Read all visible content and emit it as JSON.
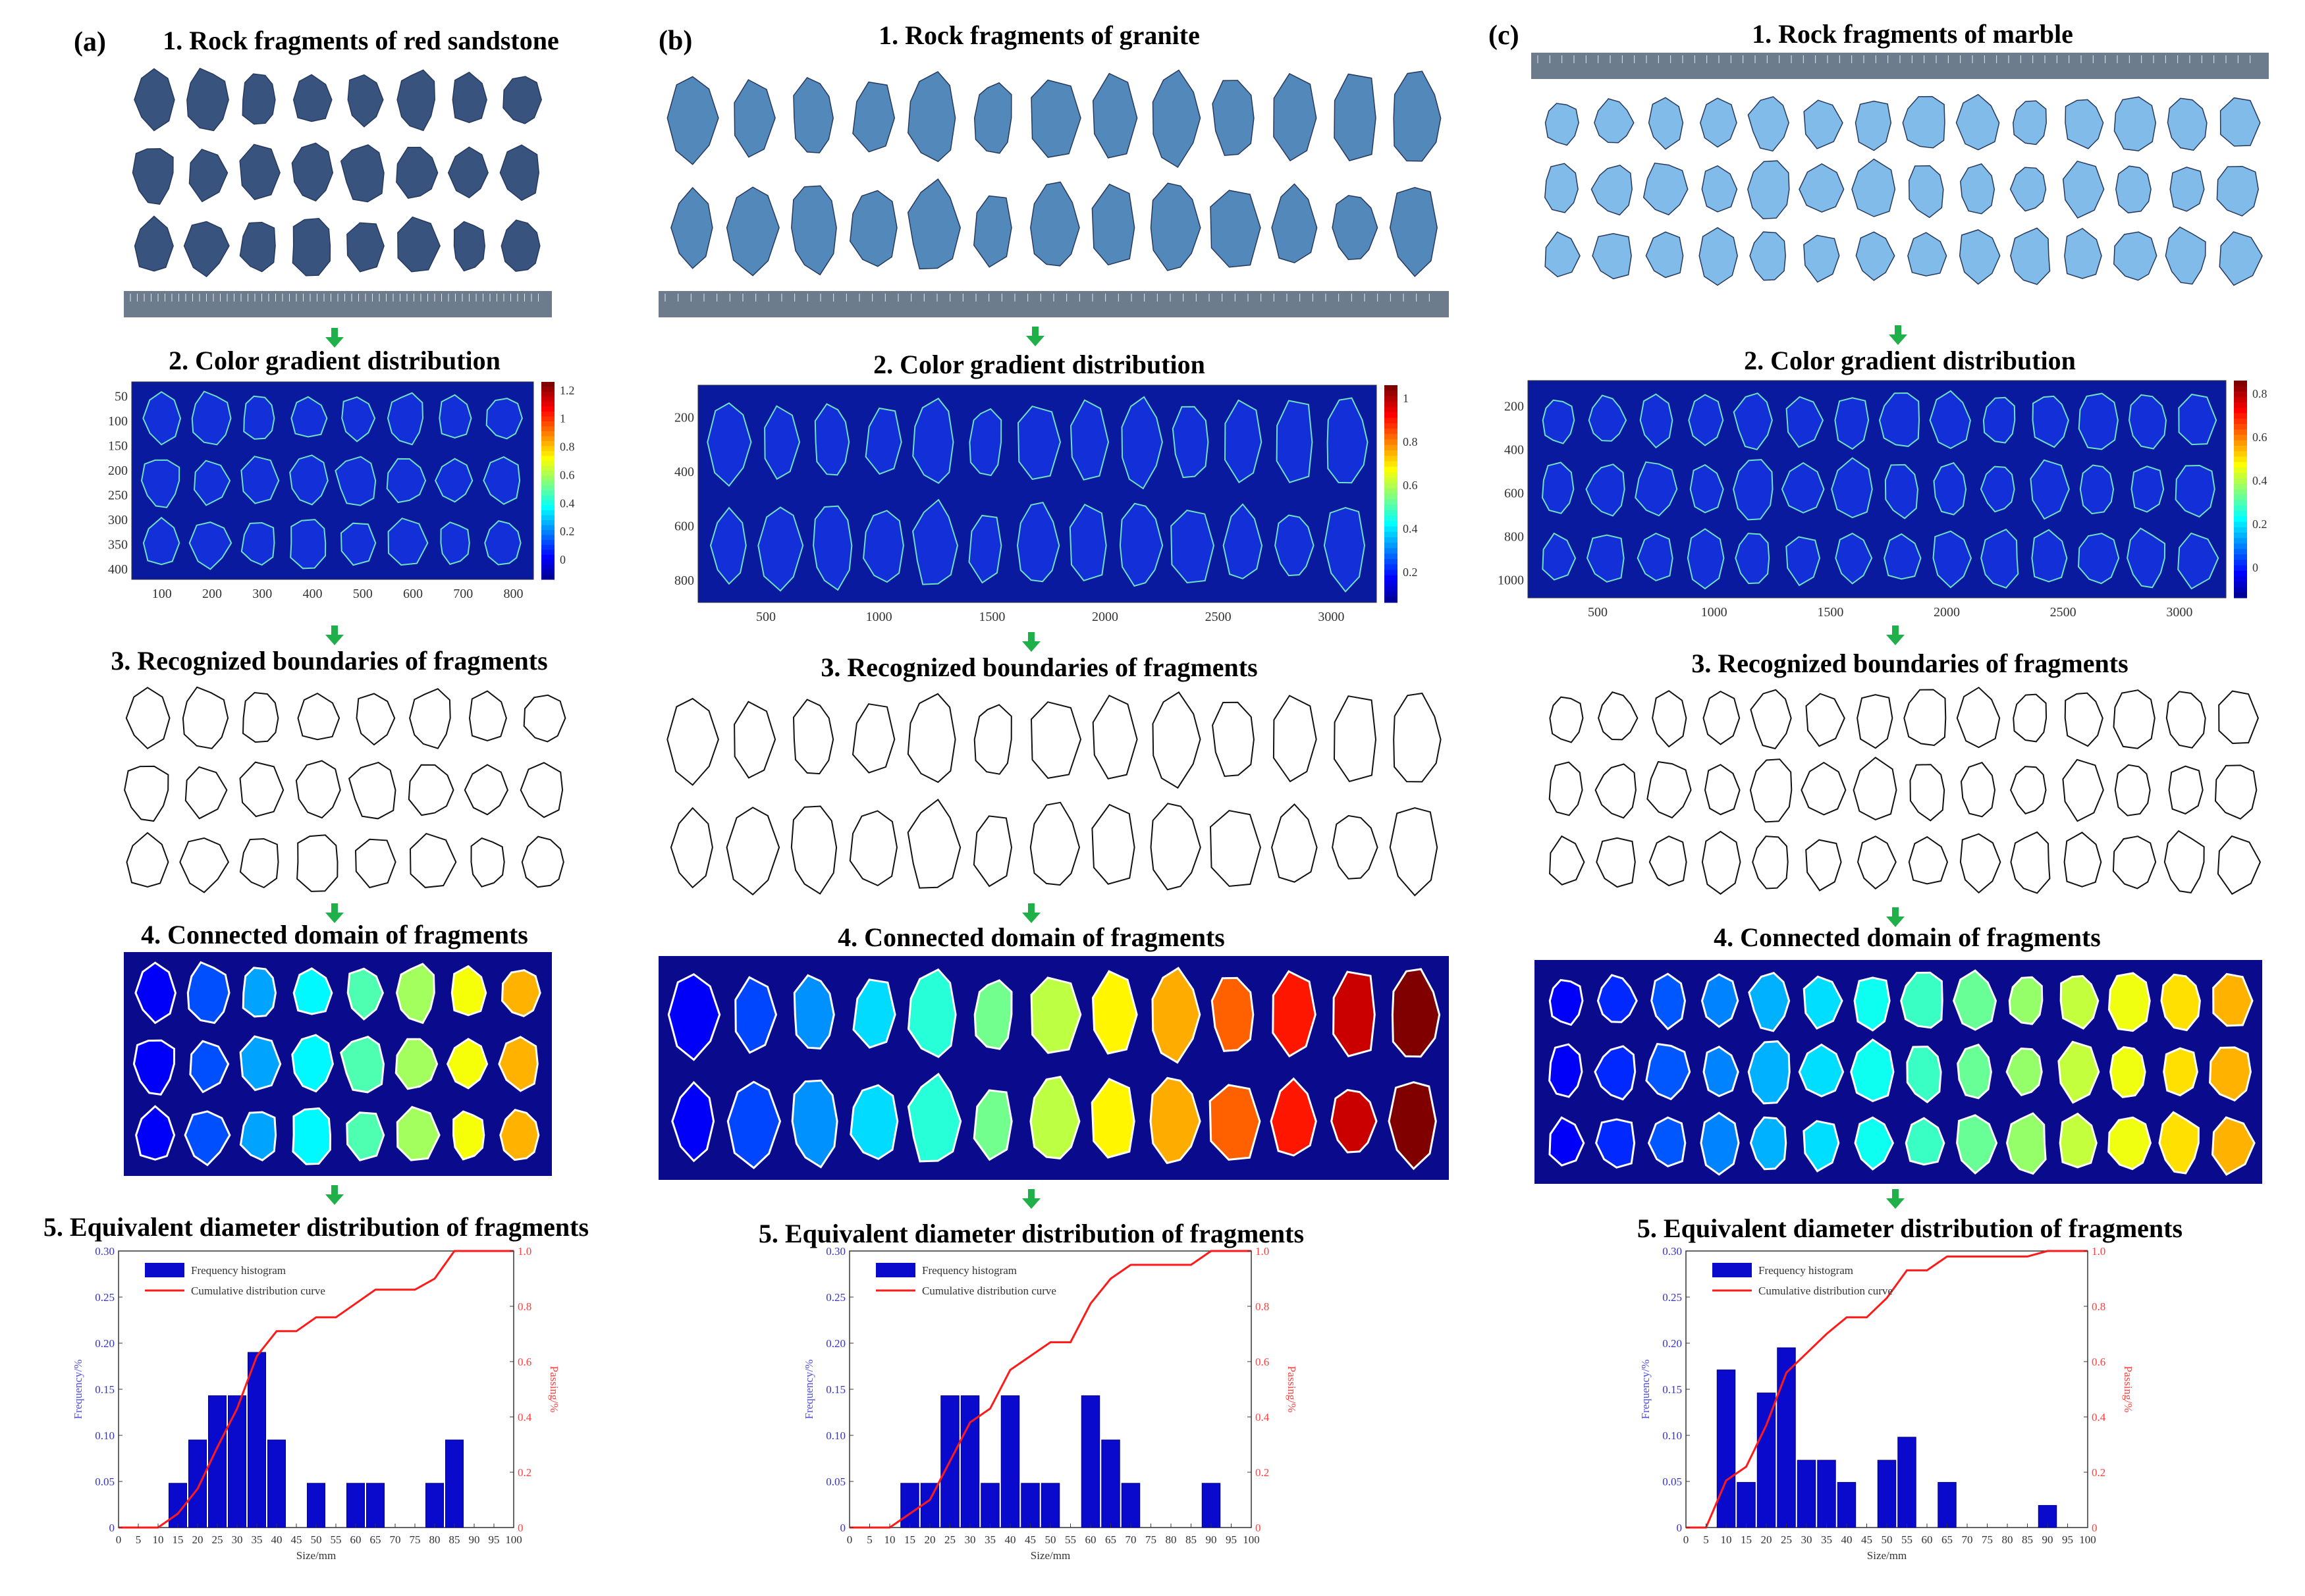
{
  "columns": [
    {
      "tag": "(a)",
      "step1": "1. Rock fragments of red sandstone",
      "step2": "2. Color gradient distribution",
      "step3": "3. Recognized boundaries of fragments",
      "step4": "4. Connected domain of fragments",
      "step5": "5. Equivalent diameter distribution of fragments",
      "rock_color": "#2e4a78",
      "gradient_ticks_x": [
        "100",
        "200",
        "300",
        "400",
        "500",
        "600",
        "700",
        "800"
      ],
      "gradient_ticks_y": [
        "50",
        "100",
        "150",
        "200",
        "250",
        "300",
        "350",
        "400"
      ],
      "colorbar_ticks": [
        "1.2",
        "1",
        "0.8",
        "0.6",
        "0.4",
        "0.2",
        "0"
      ]
    },
    {
      "tag": "(b)",
      "step1": "1. Rock fragments of granite",
      "step2": "2. Color gradient distribution",
      "step3": "3. Recognized boundaries of fragments",
      "step4": "4. Connected domain of fragments",
      "step5": "5. Equivalent diameter distribution of fragments",
      "rock_color": "#4a82b8",
      "gradient_ticks_x": [
        "500",
        "1000",
        "1500",
        "2000",
        "2500",
        "3000"
      ],
      "gradient_ticks_y": [
        "200",
        "400",
        "600",
        "800"
      ],
      "colorbar_ticks": [
        "1",
        "0.8",
        "0.6",
        "0.4",
        "0.2"
      ]
    },
    {
      "tag": "(c)",
      "step1": "1. Rock fragments of marble",
      "step2": "2. Color gradient distribution",
      "step3": "3. Recognized boundaries of fragments",
      "step4": "4. Connected domain of fragments",
      "step5": "5. Equivalent diameter distribution of fragments",
      "rock_color": "#7ab8e8",
      "gradient_ticks_x": [
        "500",
        "1000",
        "1500",
        "2000",
        "2500",
        "3000"
      ],
      "gradient_ticks_y": [
        "200",
        "400",
        "600",
        "800",
        "1000"
      ],
      "colorbar_ticks": [
        "0.8",
        "0.6",
        "0.4",
        "0.2",
        "0"
      ]
    }
  ],
  "chart_data": [
    {
      "type": "bar",
      "x": [
        15,
        20,
        25,
        30,
        35,
        40,
        50,
        60,
        65,
        80,
        85
      ],
      "values": [
        0.048,
        0.095,
        0.143,
        0.143,
        0.19,
        0.095,
        0.048,
        0.048,
        0.048,
        0.048,
        0.095
      ],
      "cumulative": {
        "x": [
          0,
          10,
          15,
          20,
          25,
          30,
          35,
          40,
          45,
          50,
          55,
          60,
          65,
          70,
          75,
          80,
          85,
          90,
          95,
          100
        ],
        "y": [
          0,
          0,
          0.05,
          0.14,
          0.29,
          0.43,
          0.62,
          0.71,
          0.71,
          0.76,
          0.76,
          0.81,
          0.86,
          0.86,
          0.86,
          0.9,
          1.0,
          1.0,
          1.0,
          1.0
        ]
      },
      "legend": [
        "Frequency histogram",
        "Cumulative distribution curve"
      ],
      "xlabel": "Size/mm",
      "ylabel": "Frequency/%",
      "y2label": "Passing/%",
      "xlim": [
        0,
        100
      ],
      "ylim": [
        0,
        0.3
      ],
      "y2lim": [
        0,
        1
      ],
      "xticks": [
        "0",
        "5",
        "10",
        "15",
        "20",
        "25",
        "30",
        "35",
        "40",
        "45",
        "50",
        "55",
        "60",
        "65",
        "70",
        "75",
        "80",
        "85",
        "90",
        "95",
        "100"
      ],
      "yticks": [
        "0",
        "0.05",
        "0.10",
        "0.15",
        "0.20",
        "0.25",
        "0.30"
      ],
      "y2ticks": [
        "0",
        "0.2",
        "0.4",
        "0.6",
        "0.8",
        "1.0"
      ]
    },
    {
      "type": "bar",
      "x": [
        15,
        20,
        25,
        30,
        35,
        40,
        45,
        50,
        60,
        65,
        70,
        90
      ],
      "values": [
        0.048,
        0.048,
        0.143,
        0.143,
        0.048,
        0.143,
        0.048,
        0.048,
        0.143,
        0.095,
        0.048,
        0.048
      ],
      "cumulative": {
        "x": [
          0,
          10,
          15,
          20,
          25,
          30,
          35,
          40,
          45,
          50,
          55,
          60,
          65,
          70,
          75,
          80,
          85,
          90,
          95,
          100
        ],
        "y": [
          0,
          0,
          0.05,
          0.1,
          0.24,
          0.38,
          0.43,
          0.57,
          0.62,
          0.67,
          0.67,
          0.81,
          0.9,
          0.95,
          0.95,
          0.95,
          0.95,
          1.0,
          1.0,
          1.0
        ]
      },
      "legend": [
        "Frequency histogram",
        "Cumulative distribution curve"
      ],
      "xlabel": "Size/mm",
      "ylabel": "Frequency/%",
      "y2label": "Passing/%",
      "xlim": [
        0,
        100
      ],
      "ylim": [
        0,
        0.3
      ],
      "y2lim": [
        0,
        1
      ],
      "xticks": [
        "0",
        "5",
        "10",
        "15",
        "20",
        "25",
        "30",
        "35",
        "40",
        "45",
        "50",
        "55",
        "60",
        "65",
        "70",
        "75",
        "80",
        "85",
        "90",
        "95",
        "100"
      ],
      "yticks": [
        "0",
        "0.05",
        "0.10",
        "0.15",
        "0.20",
        "0.25",
        "0.30"
      ],
      "y2ticks": [
        "0",
        "0.2",
        "0.4",
        "0.6",
        "0.8",
        "1.0"
      ]
    },
    {
      "type": "bar",
      "x": [
        10,
        15,
        20,
        25,
        30,
        35,
        40,
        50,
        55,
        65,
        90
      ],
      "values": [
        0.171,
        0.049,
        0.146,
        0.195,
        0.073,
        0.073,
        0.049,
        0.073,
        0.098,
        0.049,
        0.024
      ],
      "cumulative": {
        "x": [
          0,
          5,
          10,
          15,
          20,
          25,
          30,
          35,
          40,
          45,
          50,
          55,
          60,
          65,
          70,
          75,
          80,
          85,
          90,
          95,
          100
        ],
        "y": [
          0,
          0,
          0.17,
          0.22,
          0.37,
          0.56,
          0.63,
          0.7,
          0.76,
          0.76,
          0.83,
          0.93,
          0.93,
          0.98,
          0.98,
          0.98,
          0.98,
          0.98,
          1.0,
          1.0,
          1.0
        ]
      },
      "legend": [
        "Frequency histogram",
        "Cumulative distribution curve"
      ],
      "xlabel": "Size/mm",
      "ylabel": "Frequency/%",
      "y2label": "Passing/%",
      "xlim": [
        0,
        100
      ],
      "ylim": [
        0,
        0.3
      ],
      "y2lim": [
        0,
        1
      ],
      "xticks": [
        "0",
        "5",
        "10",
        "15",
        "20",
        "25",
        "30",
        "35",
        "40",
        "45",
        "50",
        "55",
        "60",
        "65",
        "70",
        "75",
        "80",
        "85",
        "90",
        "95",
        "100"
      ],
      "yticks": [
        "0",
        "0.05",
        "0.10",
        "0.15",
        "0.20",
        "0.25",
        "0.30"
      ],
      "y2ticks": [
        "0",
        "0.2",
        "0.4",
        "0.6",
        "0.8",
        "1.0"
      ]
    }
  ]
}
